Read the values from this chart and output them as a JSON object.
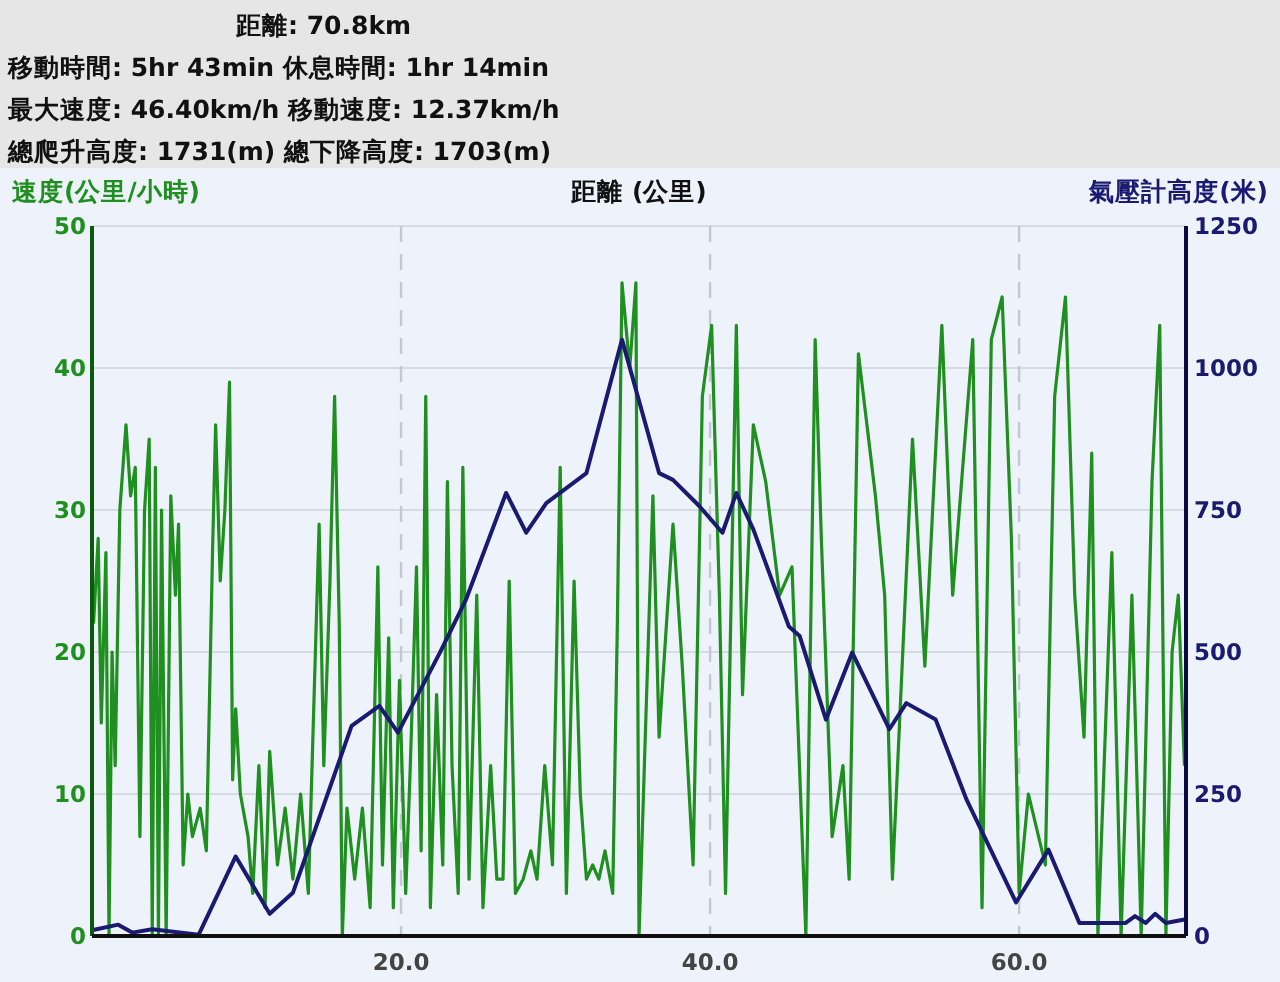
{
  "chart_data": {
    "type": "line",
    "annotations": [
      "距離: 70.8km",
      "移動時間: 5hr 43min  休息時間: 1hr 14min",
      "最大速度: 46.40km/h  移動速度: 12.37km/h",
      "總爬升高度: 1731(m)  總下降高度: 1703(m)"
    ],
    "xlabel": "距離 (公里)",
    "ylabel": "速度(公里/小時)",
    "y2label": "氣壓計高度(米)",
    "xlim": [
      0,
      70.8
    ],
    "xticks": [
      {
        "value": 20,
        "label": "20.0"
      },
      {
        "value": 40,
        "label": "40.0"
      },
      {
        "value": 60,
        "label": "60.0"
      }
    ],
    "ylim": [
      0,
      50
    ],
    "yticks": [
      0,
      10,
      20,
      30,
      40,
      50
    ],
    "y2lim": [
      0,
      1250
    ],
    "y2ticks": [
      0,
      250,
      500,
      750,
      1000,
      1250
    ],
    "grid": true,
    "series": [
      {
        "color": "#1f8f1f",
        "axis": "y",
        "x": [
          0.1,
          0.4,
          0.6,
          0.9,
          1.1,
          1.3,
          1.5,
          1.8,
          2.2,
          2.5,
          2.8,
          3.1,
          3.4,
          3.7,
          3.9,
          4.1,
          4.3,
          4.5,
          4.8,
          5.1,
          5.4,
          5.6,
          5.9,
          6.2,
          6.5,
          7.0,
          7.4,
          7.8,
          8.0,
          8.3,
          8.6,
          8.9,
          9.1,
          9.3,
          9.6,
          10.1,
          10.4,
          10.8,
          11.2,
          11.5,
          12.0,
          12.5,
          13.0,
          13.5,
          14.0,
          14.7,
          15.0,
          15.4,
          15.7,
          16.0,
          16.2,
          16.5,
          17.0,
          17.5,
          18.0,
          18.5,
          18.8,
          19.2,
          19.5,
          19.9,
          20.3,
          20.6,
          21.0,
          21.3,
          21.6,
          21.9,
          22.3,
          22.7,
          23.0,
          23.3,
          23.7,
          24.0,
          24.4,
          24.9,
          25.3,
          25.8,
          26.2,
          26.6,
          27.0,
          27.4,
          27.9,
          28.4,
          28.8,
          29.3,
          29.8,
          30.3,
          30.7,
          31.2,
          31.6,
          32.0,
          32.4,
          32.8,
          33.2,
          33.7,
          34.0,
          34.3,
          34.8,
          35.2,
          35.4,
          36.3,
          36.7,
          37.6,
          38.2,
          38.9,
          39.5,
          40.1,
          40.6,
          41.0,
          41.7,
          42.1,
          42.8,
          43.6,
          44.5,
          45.3,
          46.2,
          46.8,
          47.2,
          47.9,
          48.6,
          49.0,
          49.6,
          50.7,
          51.3,
          51.8,
          53.1,
          53.9,
          55.0,
          55.7,
          57.0,
          57.6,
          58.2,
          58.9,
          59.5,
          60.0,
          60.6,
          61.7,
          62.3,
          63.0,
          63.6,
          64.2,
          64.7,
          65.1,
          66.0,
          66.6,
          67.3,
          67.9,
          68.6,
          69.1,
          69.5,
          69.9,
          70.3,
          70.7
        ],
        "values": [
          22,
          28,
          15,
          27,
          0,
          20,
          12,
          30,
          36,
          31,
          33,
          7,
          30,
          35,
          0,
          33,
          0,
          30,
          0,
          31,
          24,
          29,
          5,
          10,
          7,
          9,
          6,
          27,
          36,
          25,
          30,
          39,
          11,
          16,
          10,
          7,
          3,
          12,
          2,
          13,
          5,
          9,
          4,
          10,
          3,
          29,
          12,
          25,
          38,
          22,
          0,
          9,
          4,
          9,
          2,
          26,
          5,
          21,
          2,
          18,
          3,
          12,
          26,
          6,
          38,
          2,
          17,
          5,
          32,
          12,
          3,
          33,
          4,
          24,
          2,
          12,
          4,
          4,
          25,
          3,
          4,
          6,
          4,
          12,
          5,
          33,
          3,
          25,
          10,
          4,
          5,
          4,
          6,
          3,
          22,
          46,
          40,
          46,
          0,
          31,
          14,
          29,
          19,
          5,
          38,
          43,
          24,
          3,
          43,
          17,
          36,
          32,
          24,
          26,
          0,
          42,
          28,
          7,
          12,
          4,
          41,
          31,
          24,
          4,
          35,
          19,
          43,
          24,
          42,
          2,
          42,
          45,
          28,
          3,
          10,
          5,
          38,
          45,
          24,
          14,
          34,
          0,
          27,
          0,
          24,
          0,
          32,
          43,
          0,
          20,
          24,
          12
        ]
      },
      {
        "color": "#1a1a70",
        "axis": "y2",
        "x": [
          0,
          1.7,
          2.6,
          3.9,
          6.9,
          9.3,
          11.5,
          13,
          16.8,
          18.6,
          19.8,
          22.5,
          24.2,
          26.8,
          28.1,
          29.4,
          32,
          34.3,
          36.7,
          37.6,
          39.3,
          40.8,
          41.7,
          42.8,
          45.1,
          45.8,
          47.5,
          49.2,
          51.6,
          52.7,
          54.6,
          56.6,
          59.8,
          61.9,
          63.9,
          66.9,
          67.5,
          68.2,
          68.8,
          69.5,
          70.7
        ],
        "values": [
          10,
          20,
          6,
          12,
          2,
          140,
          39,
          76,
          370,
          405,
          358,
          498,
          592,
          780,
          710,
          762,
          815,
          1050,
          815,
          803,
          757,
          710,
          780,
          716,
          545,
          528,
          381,
          499,
          364,
          410,
          381,
          240,
          59,
          152,
          23,
          23,
          35,
          23,
          39,
          23,
          29
        ]
      }
    ]
  }
}
